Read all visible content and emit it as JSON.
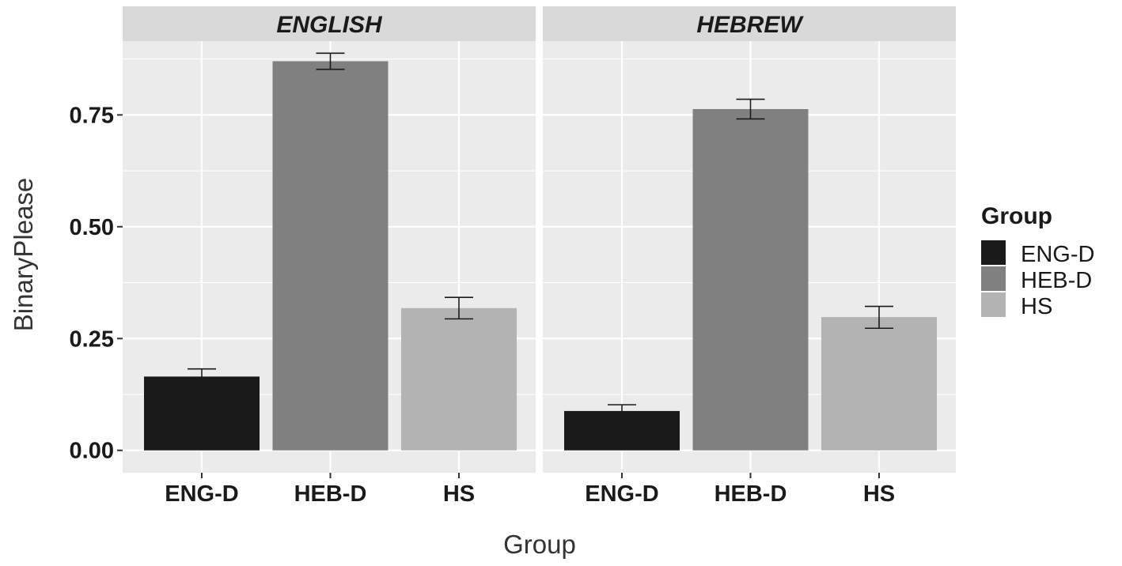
{
  "chart_data": {
    "type": "bar",
    "facets": [
      {
        "name": "ENGLISH",
        "categories": [
          "ENG-D",
          "HEB-D",
          "HS"
        ],
        "values": [
          0.165,
          0.87,
          0.318
        ],
        "error_low": [
          0.148,
          0.852,
          0.294
        ],
        "error_high": [
          0.182,
          0.888,
          0.342
        ]
      },
      {
        "name": "HEBREW",
        "categories": [
          "ENG-D",
          "HEB-D",
          "HS"
        ],
        "values": [
          0.088,
          0.763,
          0.298
        ],
        "error_low": [
          0.074,
          0.741,
          0.273
        ],
        "error_high": [
          0.102,
          0.785,
          0.322
        ]
      }
    ],
    "colors": {
      "ENG-D": "#1a1a1a",
      "HEB-D": "#808080",
      "HS": "#b3b3b3",
      "panel_background": "#ebebeb",
      "strip_background": "#d9d9d9",
      "grid": "#ffffff"
    },
    "xlabel": "Group",
    "ylabel": "BinaryPlease",
    "ylim": [
      -0.05,
      0.915
    ],
    "yticks": [
      0.0,
      0.25,
      0.5,
      0.75
    ],
    "ytick_labels": [
      "0.00",
      "0.25",
      "0.50",
      "0.75"
    ],
    "grid": true,
    "legend": {
      "title": "Group",
      "placement": "right",
      "entries": [
        "ENG-D",
        "HEB-D",
        "HS"
      ]
    }
  }
}
